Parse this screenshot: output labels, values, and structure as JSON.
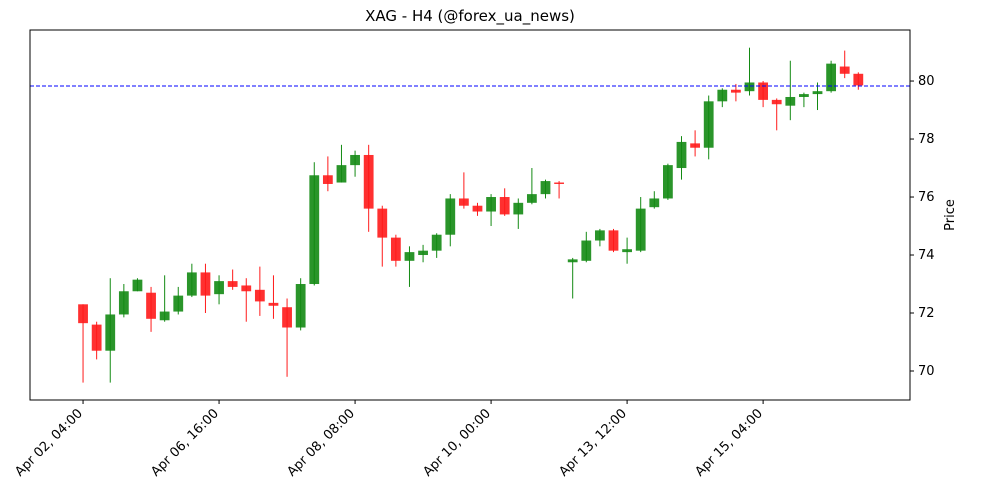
{
  "chart_data": {
    "type": "candlestick",
    "title": "XAG - H4 (@forex_ua_news)",
    "y_label": "Price",
    "categories": [
      "Apr 02, 04:00",
      null,
      null,
      null,
      null,
      null,
      null,
      null,
      null,
      null,
      "Apr 06, 16:00",
      null,
      null,
      null,
      null,
      null,
      null,
      null,
      null,
      null,
      "Apr 08, 08:00",
      null,
      null,
      null,
      null,
      null,
      null,
      null,
      null,
      null,
      "Apr 10, 00:00",
      null,
      null,
      null,
      null,
      null,
      null,
      null,
      null,
      null,
      "Apr 13, 12:00",
      null,
      null,
      null,
      null,
      null,
      null,
      null,
      null,
      null,
      "Apr 15, 04:00",
      null,
      null,
      null,
      null,
      null,
      null,
      null
    ],
    "open": [
      72.3,
      71.6,
      70.7,
      71.95,
      72.75,
      72.7,
      71.75,
      72.05,
      72.6,
      73.4,
      72.65,
      73.1,
      72.95,
      72.8,
      72.35,
      72.2,
      71.5,
      73.0,
      76.75,
      76.5,
      77.1,
      77.45,
      75.6,
      74.6,
      73.8,
      74.0,
      74.15,
      74.7,
      75.95,
      75.7,
      75.5,
      76.0,
      75.4,
      75.8,
      76.1,
      76.5,
      73.75,
      73.8,
      74.5,
      74.85,
      74.1,
      74.15,
      75.65,
      75.95,
      77.0,
      77.85,
      77.7,
      79.3,
      79.7,
      79.65,
      79.95,
      79.35,
      79.15,
      79.45,
      79.55,
      79.65,
      80.5,
      80.25
    ],
    "high": [
      72.3,
      71.7,
      73.2,
      73.0,
      73.2,
      72.9,
      73.3,
      72.9,
      73.7,
      73.7,
      73.3,
      73.5,
      73.2,
      73.6,
      73.3,
      72.5,
      73.2,
      77.2,
      77.4,
      77.8,
      77.6,
      77.8,
      75.7,
      74.7,
      74.3,
      74.35,
      74.75,
      76.1,
      76.85,
      75.8,
      76.1,
      76.3,
      75.95,
      77.0,
      76.6,
      76.55,
      73.9,
      74.8,
      74.9,
      74.9,
      74.6,
      76.0,
      76.2,
      77.15,
      78.1,
      78.3,
      79.5,
      79.75,
      79.9,
      81.15,
      80.0,
      79.4,
      80.7,
      79.6,
      79.95,
      80.7,
      81.05,
      80.3
    ],
    "low": [
      69.6,
      70.4,
      69.6,
      71.85,
      72.75,
      71.35,
      71.7,
      71.95,
      72.55,
      72.0,
      72.3,
      72.8,
      71.7,
      71.9,
      71.8,
      69.8,
      71.4,
      72.95,
      76.2,
      76.5,
      76.7,
      74.8,
      73.6,
      73.6,
      72.9,
      73.75,
      73.9,
      74.3,
      75.6,
      75.35,
      75.0,
      75.35,
      74.9,
      75.75,
      75.95,
      75.95,
      72.5,
      73.75,
      74.3,
      74.1,
      73.7,
      74.1,
      75.6,
      75.9,
      76.6,
      77.4,
      77.3,
      79.1,
      79.3,
      79.5,
      79.1,
      78.3,
      78.65,
      79.1,
      79.0,
      79.6,
      80.1,
      79.7
    ],
    "close": [
      71.65,
      70.7,
      71.95,
      72.75,
      73.15,
      71.8,
      72.05,
      72.6,
      73.4,
      72.6,
      73.1,
      72.9,
      72.75,
      72.4,
      72.25,
      71.5,
      73.0,
      76.75,
      76.45,
      77.1,
      77.45,
      75.6,
      74.6,
      73.8,
      74.1,
      74.15,
      74.7,
      75.95,
      75.7,
      75.5,
      76.0,
      75.4,
      75.8,
      76.1,
      76.55,
      76.45,
      73.85,
      74.5,
      74.85,
      74.15,
      74.2,
      75.6,
      75.95,
      77.1,
      77.9,
      77.7,
      79.3,
      79.7,
      79.6,
      79.95,
      79.35,
      79.2,
      79.45,
      79.55,
      79.65,
      80.6,
      80.25,
      79.85
    ],
    "up_color": "#138a13",
    "down_color": "#ff1a1a",
    "hline": {
      "value": 79.83,
      "color": "#0000ff"
    },
    "xlim": [
      -3.9,
      60.8
    ],
    "ylim": [
      69.0,
      81.76
    ],
    "yticks": [
      70,
      72,
      74,
      76,
      78,
      80
    ]
  }
}
